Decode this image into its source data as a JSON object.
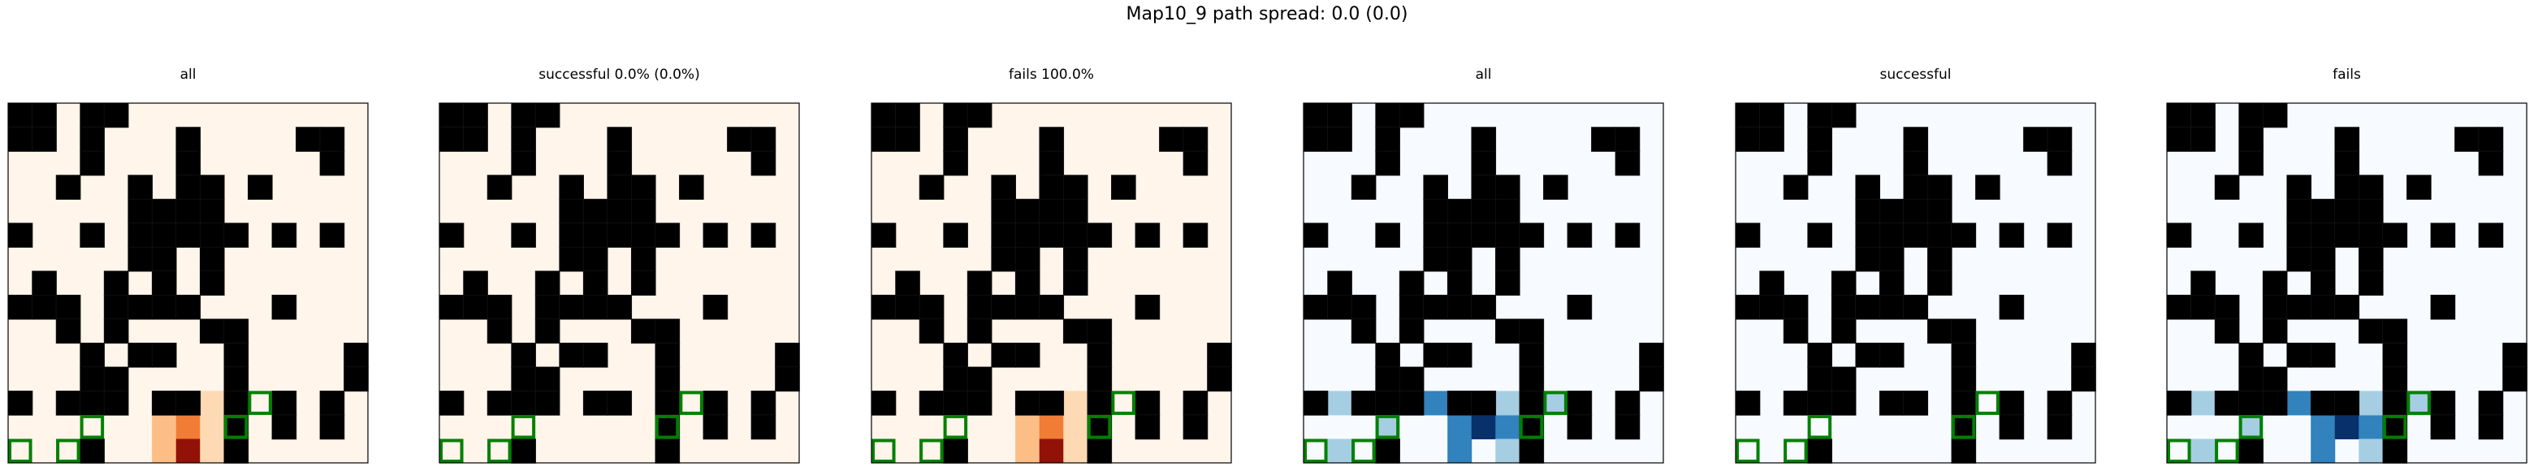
{
  "figure": {
    "title": "Map10_9 path spread: 0.0 (0.0)"
  },
  "grid_size": 15,
  "obstacles": [
    [
      1,
      1,
      0,
      1,
      1,
      0,
      0,
      0,
      0,
      0,
      0,
      0,
      0,
      0,
      0
    ],
    [
      1,
      1,
      0,
      1,
      0,
      0,
      0,
      1,
      0,
      0,
      0,
      0,
      1,
      1,
      0
    ],
    [
      0,
      0,
      0,
      1,
      0,
      0,
      0,
      1,
      0,
      0,
      0,
      0,
      0,
      1,
      0
    ],
    [
      0,
      0,
      1,
      0,
      0,
      1,
      0,
      1,
      1,
      0,
      1,
      0,
      0,
      0,
      0
    ],
    [
      0,
      0,
      0,
      0,
      0,
      1,
      1,
      1,
      1,
      0,
      0,
      0,
      0,
      0,
      0
    ],
    [
      1,
      0,
      0,
      1,
      0,
      1,
      1,
      1,
      1,
      1,
      0,
      1,
      0,
      1,
      0
    ],
    [
      0,
      0,
      0,
      0,
      0,
      1,
      1,
      0,
      1,
      0,
      0,
      0,
      0,
      0,
      0
    ],
    [
      0,
      1,
      0,
      0,
      1,
      0,
      1,
      0,
      1,
      0,
      0,
      0,
      0,
      0,
      0
    ],
    [
      1,
      1,
      1,
      0,
      1,
      1,
      1,
      1,
      0,
      0,
      0,
      1,
      0,
      0,
      0
    ],
    [
      0,
      0,
      1,
      0,
      1,
      0,
      0,
      0,
      1,
      1,
      0,
      0,
      0,
      0,
      0
    ],
    [
      0,
      0,
      0,
      1,
      0,
      1,
      1,
      0,
      0,
      1,
      0,
      0,
      0,
      0,
      1
    ],
    [
      0,
      0,
      0,
      1,
      1,
      0,
      0,
      0,
      0,
      1,
      0,
      0,
      0,
      0,
      1
    ],
    [
      1,
      0,
      1,
      1,
      1,
      0,
      1,
      1,
      0,
      1,
      0,
      1,
      0,
      1,
      0
    ],
    [
      0,
      0,
      0,
      0,
      0,
      0,
      0,
      0,
      0,
      1,
      0,
      1,
      0,
      1,
      0
    ],
    [
      0,
      0,
      0,
      1,
      0,
      0,
      0,
      0,
      0,
      1,
      0,
      0,
      0,
      0,
      0
    ]
  ],
  "goal_cells": [
    [
      14,
      0
    ],
    [
      14,
      2
    ],
    [
      13,
      3
    ],
    [
      13,
      9
    ],
    [
      12,
      10
    ]
  ],
  "chart_data": [
    {
      "type": "heatmap",
      "title": "all",
      "cmap": "oranges",
      "cells": [
        [
          13,
          6,
          0.25
        ],
        [
          13,
          7,
          0.25
        ],
        [
          14,
          6,
          0.25
        ],
        [
          14,
          7,
          0.25
        ],
        [
          14,
          8,
          0.25
        ],
        [
          15,
          6,
          0.25
        ],
        [
          15,
          7,
          1.0
        ],
        [
          15,
          8,
          0.25
        ],
        [
          16,
          6,
          0.35
        ],
        [
          16,
          7,
          0.6
        ],
        [
          16,
          8,
          0.25
        ],
        [
          17,
          6,
          0.35
        ],
        [
          17,
          7,
          0.95
        ],
        [
          17,
          8,
          0.25
        ]
      ]
    },
    {
      "type": "heatmap",
      "title": "successful 0.0% (0.0%)",
      "cmap": "oranges",
      "cells": []
    },
    {
      "type": "heatmap",
      "title": "fails 100.0%",
      "cmap": "oranges",
      "cells": [
        [
          13,
          6,
          0.25
        ],
        [
          13,
          7,
          0.25
        ],
        [
          14,
          6,
          0.25
        ],
        [
          14,
          7,
          0.25
        ],
        [
          14,
          8,
          0.25
        ],
        [
          15,
          6,
          0.25
        ],
        [
          15,
          7,
          1.0
        ],
        [
          15,
          8,
          0.25
        ],
        [
          16,
          6,
          0.35
        ],
        [
          16,
          7,
          0.6
        ],
        [
          16,
          8,
          0.25
        ],
        [
          17,
          6,
          0.35
        ],
        [
          17,
          7,
          0.95
        ],
        [
          17,
          8,
          0.25
        ]
      ]
    },
    {
      "type": "heatmap",
      "title": "all",
      "cmap": "blues",
      "cells": [
        [
          12,
          10,
          0.3
        ],
        [
          13,
          3,
          0.3
        ],
        [
          13,
          6,
          0.7
        ],
        [
          13,
          7,
          1.0
        ],
        [
          13,
          8,
          0.7
        ],
        [
          14,
          1,
          0.3
        ],
        [
          14,
          6,
          0.7
        ],
        [
          14,
          8,
          0.3
        ],
        [
          15,
          1,
          0.3
        ],
        [
          15,
          2,
          1.0
        ],
        [
          15,
          3,
          0.3
        ],
        [
          15,
          4,
          0.7
        ],
        [
          15,
          5,
          0.7
        ],
        [
          15,
          6,
          0.7
        ],
        [
          15,
          7,
          0.7
        ],
        [
          15,
          8,
          0.3
        ]
      ]
    },
    {
      "type": "heatmap",
      "title": "successful",
      "cmap": "blues",
      "cells": []
    },
    {
      "type": "heatmap",
      "title": "fails",
      "cmap": "blues",
      "cells": [
        [
          12,
          10,
          0.3
        ],
        [
          13,
          3,
          0.3
        ],
        [
          13,
          6,
          0.7
        ],
        [
          13,
          7,
          1.0
        ],
        [
          13,
          8,
          0.7
        ],
        [
          14,
          1,
          0.3
        ],
        [
          14,
          6,
          0.7
        ],
        [
          14,
          8,
          0.3
        ],
        [
          15,
          1,
          0.3
        ],
        [
          15,
          2,
          1.0
        ],
        [
          15,
          3,
          0.3
        ],
        [
          15,
          4,
          0.7
        ],
        [
          15,
          5,
          0.7
        ],
        [
          15,
          6,
          0.7
        ],
        [
          15,
          7,
          0.7
        ],
        [
          15,
          8,
          0.3
        ]
      ]
    }
  ],
  "colors": {
    "oranges_low": "#fff5eb",
    "blues_low": "#f7fbff",
    "obstacle": "#000000",
    "goal_outline": "#008000"
  }
}
